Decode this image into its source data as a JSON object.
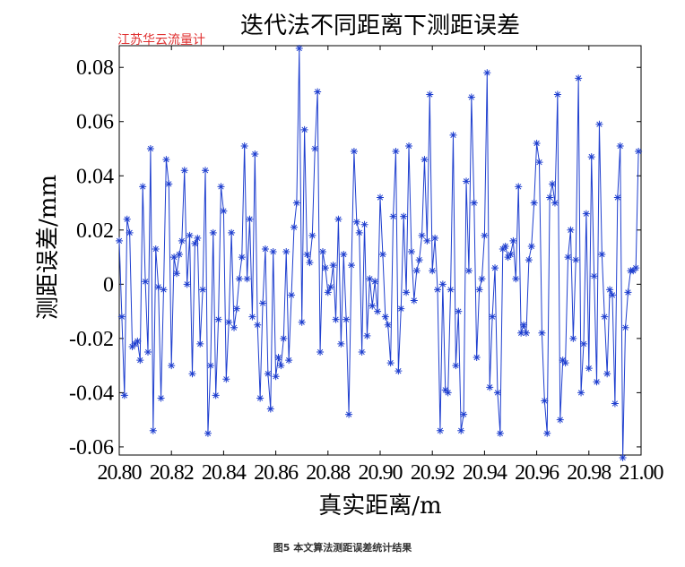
{
  "watermark": "江苏华云流量计",
  "caption": "图5 本文算法测距误差统计结果",
  "colors": {
    "series": "#1f3fcf",
    "axis": "#000000"
  },
  "chart_data": {
    "type": "line",
    "marker": "asterisk",
    "title": "迭代法不同距离下测距误差",
    "xlabel": "真实距离/m",
    "ylabel": "测距误差/mm",
    "xlim": [
      20.8,
      21.0
    ],
    "ylim": [
      -0.063,
      0.088
    ],
    "xticks": [
      20.8,
      20.82,
      20.84,
      20.86,
      20.88,
      20.9,
      20.92,
      20.94,
      20.96,
      20.98,
      21.0
    ],
    "xtick_labels": [
      "20.80",
      "20.82",
      "20.84",
      "20.86",
      "20.88",
      "20.90",
      "20.92",
      "20.94",
      "20.96",
      "20.98",
      "21.00"
    ],
    "yticks": [
      -0.06,
      -0.04,
      -0.02,
      0,
      0.02,
      0.04,
      0.06,
      0.08
    ],
    "ytick_labels": [
      "-0.06",
      "-0.04",
      "-0.02",
      "0",
      "0.02",
      "0.04",
      "0.06",
      "0.08"
    ],
    "grid": false,
    "series": [
      {
        "x_start": 20.8,
        "x_step": 0.001,
        "values": [
          0.016,
          -0.012,
          -0.041,
          0.024,
          0.019,
          -0.023,
          -0.022,
          -0.021,
          -0.028,
          0.036,
          0.001,
          -0.025,
          0.05,
          -0.054,
          0.013,
          -0.001,
          -0.042,
          -0.002,
          0.046,
          0.037,
          -0.03,
          0.01,
          0.004,
          0.011,
          0.016,
          0.042,
          0.0,
          0.018,
          -0.033,
          0.015,
          0.017,
          -0.022,
          -0.002,
          0.042,
          -0.055,
          -0.03,
          0.019,
          -0.041,
          -0.013,
          0.036,
          0.027,
          -0.035,
          -0.014,
          0.019,
          -0.016,
          -0.009,
          0.002,
          0.01,
          0.051,
          0.002,
          0.024,
          -0.012,
          0.048,
          -0.015,
          -0.042,
          -0.007,
          0.013,
          -0.033,
          -0.046,
          0.012,
          -0.034,
          -0.027,
          -0.03,
          -0.02,
          0.012,
          -0.028,
          -0.004,
          0.021,
          0.03,
          0.087,
          -0.014,
          0.057,
          0.011,
          0.008,
          0.018,
          0.05,
          0.071,
          -0.025,
          0.012,
          0.006,
          -0.003,
          -0.001,
          0.007,
          -0.013,
          0.024,
          -0.022,
          0.011,
          -0.013,
          -0.048,
          0.007,
          0.049,
          0.023,
          0.019,
          -0.025,
          0.022,
          -0.019,
          0.002,
          -0.008,
          0.001,
          -0.01,
          0.032,
          0.011,
          -0.012,
          -0.015,
          -0.029,
          0.025,
          0.049,
          -0.032,
          -0.009,
          0.025,
          -0.003,
          0.051,
          0.012,
          -0.006,
          0.005,
          0.009,
          0.018,
          0.046,
          0.016,
          0.07,
          0.005,
          0.017,
          -0.002,
          -0.054,
          0.0,
          -0.039,
          -0.04,
          -0.002,
          0.055,
          -0.03,
          -0.01,
          -0.054,
          -0.048,
          0.038,
          0.005,
          0.069,
          0.03,
          -0.027,
          -0.002,
          0.002,
          0.018,
          0.078,
          -0.038,
          -0.012,
          0.006,
          -0.04,
          -0.055,
          0.013,
          0.014,
          0.01,
          0.011,
          0.016,
          0.002,
          0.036,
          -0.018,
          -0.015,
          -0.018,
          0.009,
          0.014,
          0.03,
          0.052,
          0.045,
          -0.018,
          -0.043,
          -0.055,
          0.032,
          0.037,
          0.03,
          0.07,
          -0.05,
          -0.028,
          -0.029,
          0.01,
          0.02,
          -0.02,
          0.009,
          0.076,
          -0.04,
          -0.022,
          0.026,
          -0.031,
          0.047,
          0.003,
          -0.036,
          0.059,
          0.011,
          -0.012,
          -0.033,
          -0.002,
          -0.004,
          -0.044,
          0.032,
          0.051,
          -0.064,
          -0.016,
          -0.003,
          0.005,
          0.005,
          0.006,
          0.049
        ]
      }
    ]
  }
}
